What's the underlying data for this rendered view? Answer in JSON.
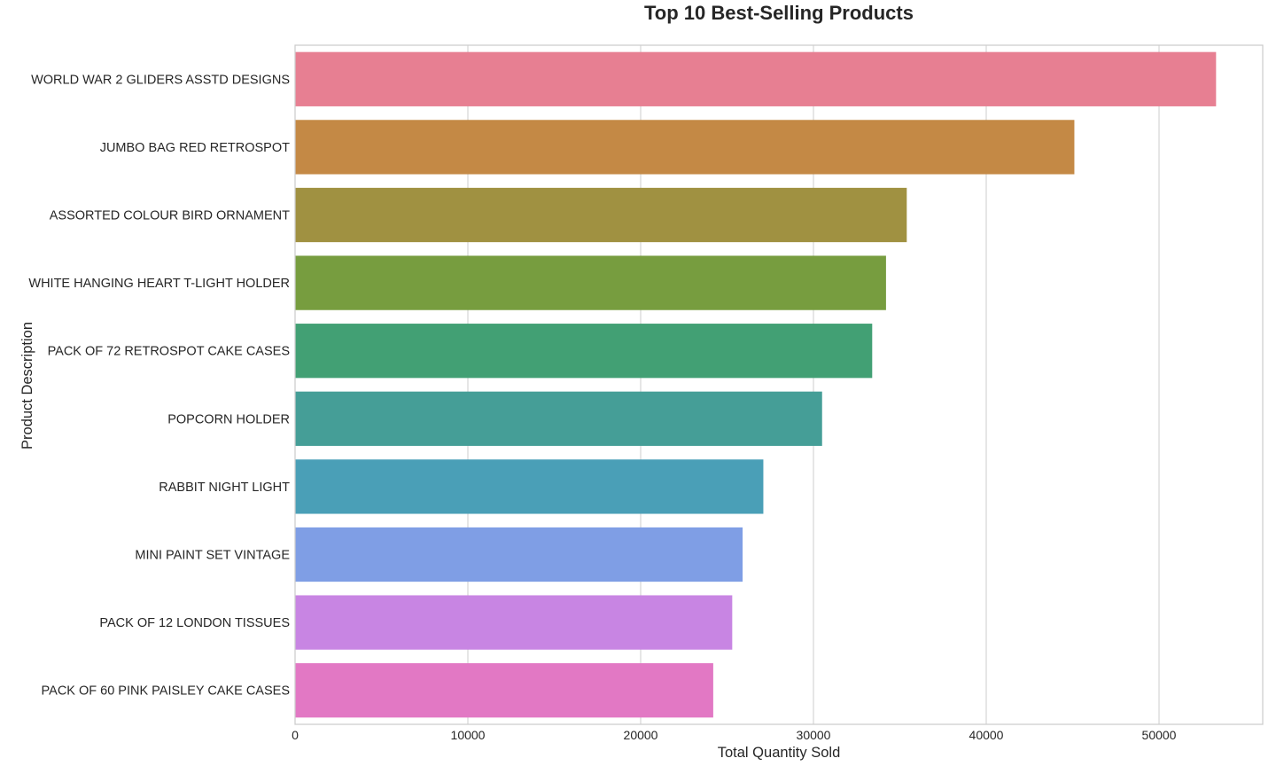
{
  "chart_data": {
    "type": "bar",
    "orientation": "horizontal",
    "title": "Top 10 Best-Selling Products",
    "xlabel": "Total Quantity Sold",
    "ylabel": "Product Description",
    "xlim": [
      0,
      56000
    ],
    "xticks": [
      0,
      10000,
      20000,
      30000,
      40000,
      50000
    ],
    "grid": "vertical",
    "categories": [
      "WORLD WAR 2 GLIDERS ASSTD DESIGNS",
      "JUMBO BAG RED RETROSPOT",
      "ASSORTED COLOUR BIRD ORNAMENT",
      "WHITE HANGING HEART T-LIGHT HOLDER",
      "PACK OF 72 RETROSPOT CAKE CASES",
      "POPCORN HOLDER",
      "RABBIT NIGHT LIGHT",
      "MINI PAINT SET VINTAGE",
      "PACK OF 12 LONDON TISSUES",
      "PACK OF 60 PINK PAISLEY CAKE CASES"
    ],
    "values": [
      53300,
      45100,
      35400,
      34200,
      33400,
      30500,
      27100,
      25900,
      25300,
      24200
    ],
    "colors": [
      "#e77f92",
      "#c48945",
      "#a09141",
      "#779d3f",
      "#42a074",
      "#459e97",
      "#4a9fb7",
      "#7f9ee5",
      "#c885e3",
      "#e278c4"
    ]
  }
}
